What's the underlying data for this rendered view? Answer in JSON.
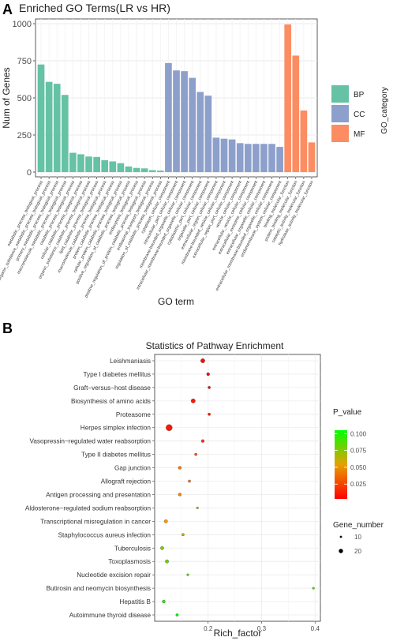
{
  "panel_a_label": "A",
  "panel_b_label": "B",
  "chart_data": [
    {
      "type": "bar",
      "title": "Enriched GO Terms(LR vs HR)",
      "xlabel": "GO term",
      "ylabel": "Num of Genes",
      "ylim": [
        0,
        1000
      ],
      "yticks": [
        "0",
        "250",
        "500",
        "750",
        "1000"
      ],
      "legend_title": "GO_category",
      "legend_position": "right",
      "grid": true,
      "colors": {
        "BP": "#66c2a5",
        "CC": "#8da0cb",
        "MF": "#fc8d62"
      },
      "categories": [
        "metabolic_process_biological_process",
        "organic_substance_metabolic_process_biological_process",
        "primary_metabolic_process_biological_process",
        "macromolecule_metabolic_process_biological_process",
        "catabolic_process_biological_process",
        "cellular_catabolic_process_biological_process",
        "organic_substance_catabolic_process_biological_process",
        "lipid_catabolic_process_biological_process",
        "macromolecule_catabolic_process_biological_process",
        "protein_catabolic_process_biological_process",
        "cellular_protein_catabolic_process_biological_process",
        "positive_regulation_of_catabolic_process_biological_process",
        "endocytosis_biological_process",
        "positive_regulation_of_protein_catabolic_process_biological_process",
        "endosomal_transport_biological_process",
        "regulation_of_catabolic_process_biological_process",
        "cytoplasm_cellular_component",
        "intracellular_part_cellular_component",
        "membrane-bounded_organelle_cellular_component",
        "intracellular_membrane-bounded_organelle_cellular_component",
        "cytoplasmic_part_cellular_component",
        "organelle_part_cellular_component",
        "extracellular_region_cellular_component",
        "membrane-bounded_vesicle_cellular_component",
        "extracellular_region_part_cellular_component",
        "vesicle_cellular_component",
        "extracellular_vesicle_cellular_component",
        "extracellular_exosome_cellular_component",
        "extracellular_organelle_cellular_component",
        "extracellular_membrane-bounded_organelle_cellular_component",
        "endomembrane_system_cellular_component",
        "binding_molecular_function",
        "protein_binding_molecular_function",
        "catalytic_activity_molecular_function",
        "hydrolase_activity_molecular_function"
      ],
      "category_groups": [
        "BP",
        "BP",
        "BP",
        "BP",
        "BP",
        "BP",
        "BP",
        "BP",
        "BP",
        "BP",
        "BP",
        "BP",
        "BP",
        "BP",
        "BP",
        "BP",
        "CC",
        "CC",
        "CC",
        "CC",
        "CC",
        "CC",
        "CC",
        "CC",
        "CC",
        "CC",
        "CC",
        "CC",
        "CC",
        "CC",
        "CC",
        "MF",
        "MF",
        "MF",
        "MF"
      ],
      "values": [
        725,
        608,
        595,
        520,
        130,
        120,
        105,
        102,
        80,
        72,
        60,
        38,
        28,
        25,
        13,
        10,
        735,
        685,
        680,
        635,
        540,
        515,
        232,
        225,
        220,
        195,
        190,
        190,
        190,
        190,
        170,
        995,
        785,
        415,
        200
      ],
      "legend": [
        {
          "name": "BP",
          "color": "#66c2a5"
        },
        {
          "name": "CC",
          "color": "#8da0cb"
        },
        {
          "name": "MF",
          "color": "#fc8d62"
        }
      ]
    },
    {
      "type": "scatter",
      "title": "Statistics of Pathway Enrichment",
      "xlabel": "Rich_factor",
      "ylabel": "",
      "xlim": [
        0.1,
        0.41
      ],
      "xticks": [
        "0.2",
        "0.3",
        "0.4"
      ],
      "grid": true,
      "pathways": [
        "Leishmaniasis",
        "Type I diabetes mellitus",
        "Graft−versus−host disease",
        "Biosynthesis of amino acids",
        "Proteasome",
        "Herpes simplex infection",
        "Vasopressin−regulated water reabsorption",
        "Type II diabetes mellitus",
        "Gap junction",
        "Allograft rejection",
        "Antigen processing and presentation",
        "Aldosterone−regulated sodium reabsorption",
        "Transcriptional misregulation in cancer",
        "Staphylococcus aureus infection",
        "Tuberculosis",
        "Toxoplasmosis",
        "Nucleotide excision repair",
        "Butirosin and neomycin biosynthesis",
        "Hepatitis B",
        "Autoimmune thyroid disease"
      ],
      "rich_factor": [
        0.19,
        0.2,
        0.202,
        0.172,
        0.202,
        0.127,
        0.19,
        0.177,
        0.147,
        0.165,
        0.147,
        0.18,
        0.121,
        0.153,
        0.114,
        0.123,
        0.162,
        0.397,
        0.117,
        0.142
      ],
      "p_value": [
        0.006,
        0.004,
        0.006,
        0.01,
        0.01,
        0.01,
        0.02,
        0.03,
        0.04,
        0.04,
        0.045,
        0.06,
        0.05,
        0.06,
        0.075,
        0.08,
        0.09,
        0.09,
        0.1,
        0.105
      ],
      "gene_number": [
        20,
        14,
        12,
        20,
        12,
        30,
        14,
        12,
        14,
        12,
        14,
        10,
        16,
        12,
        16,
        16,
        10,
        10,
        14,
        12
      ],
      "color_legend": {
        "title": "P_value",
        "ticks": [
          "0.100",
          "0.075",
          "0.050",
          "0.025"
        ],
        "low_color": "#ff0000",
        "high_color": "#00ff00"
      },
      "size_legend": {
        "title": "Gene_number",
        "entries": [
          "10",
          "20"
        ]
      }
    }
  ]
}
